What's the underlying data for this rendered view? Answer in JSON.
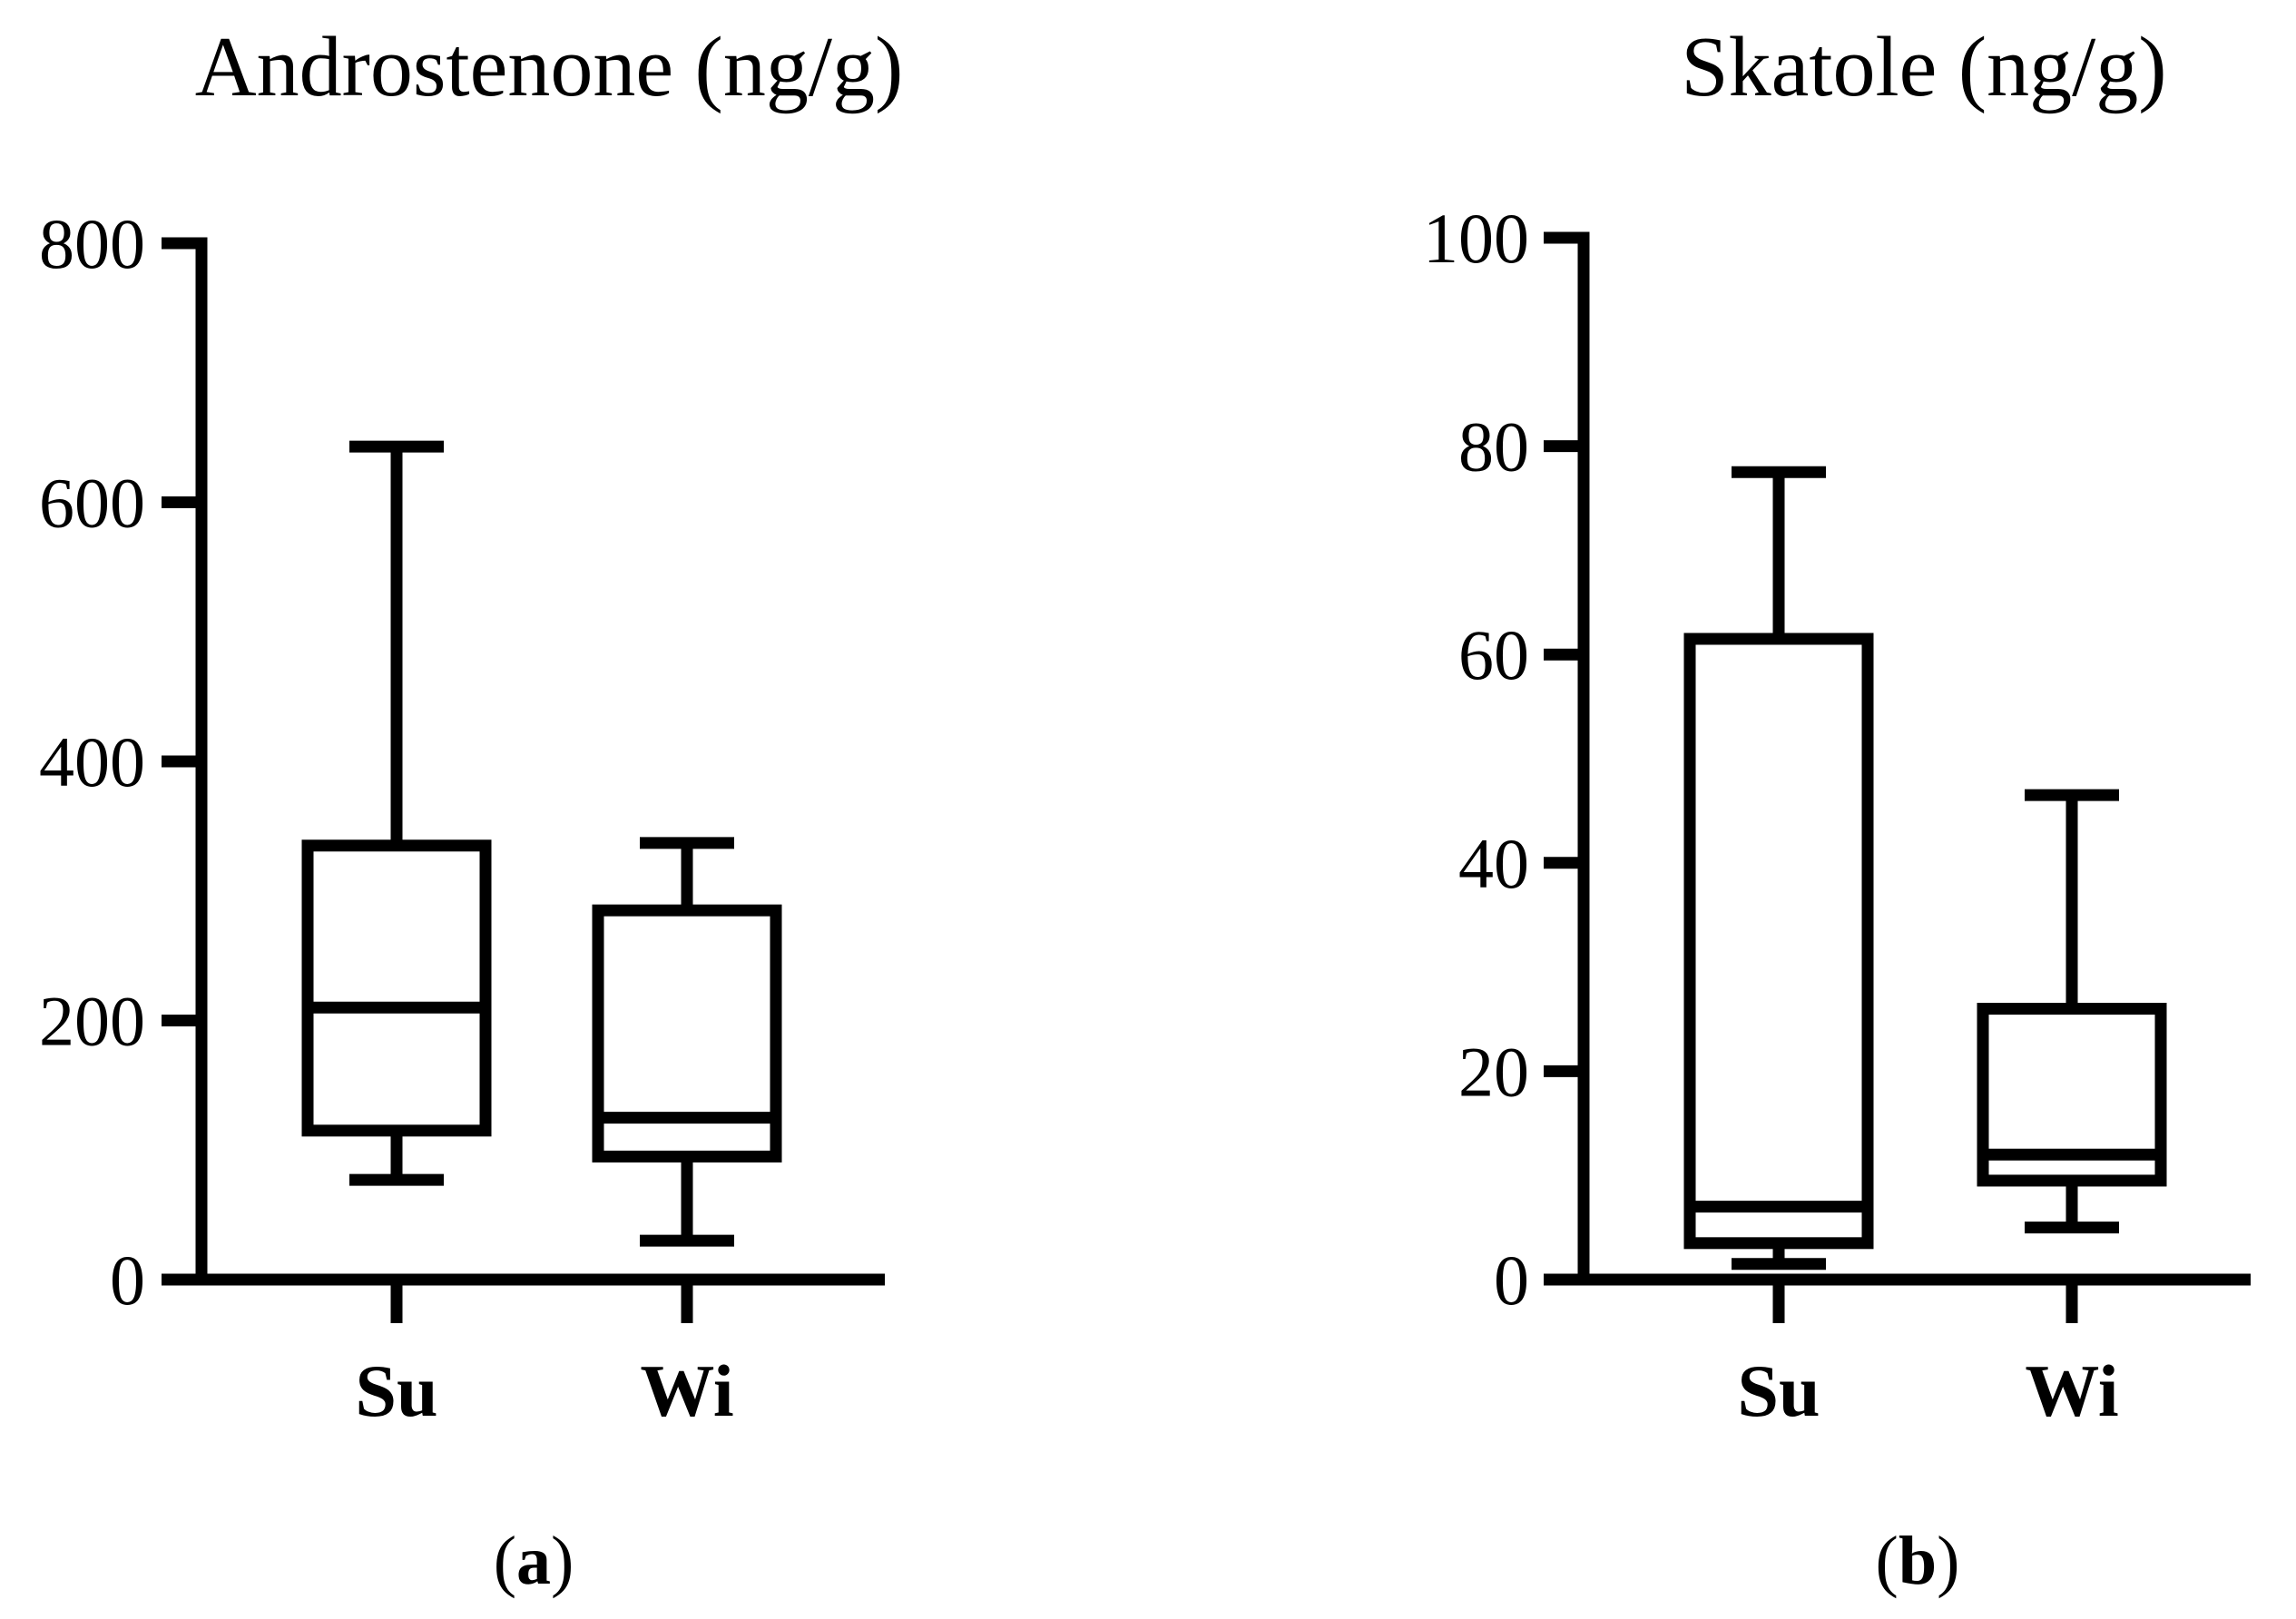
{
  "chart_data": [
    {
      "type": "box",
      "panel_label": "a",
      "title": "Androstenone (ng/g)",
      "xlabel": "",
      "ylabel": "",
      "ylim": [
        0,
        800
      ],
      "yticks": [
        0,
        200,
        400,
        600,
        800
      ],
      "categories": [
        "Su",
        "Wi"
      ],
      "boxes": [
        {
          "name": "Su",
          "whisker_low": 77,
          "q1": 115,
          "median": 210,
          "q3": 335,
          "whisker_high": 643
        },
        {
          "name": "Wi",
          "whisker_low": 30,
          "q1": 95,
          "median": 125,
          "q3": 285,
          "whisker_high": 337
        }
      ],
      "grid": false,
      "line_color": "#000000"
    },
    {
      "type": "box",
      "panel_label": "b",
      "title": "Skatole (ng/g)",
      "xlabel": "",
      "ylabel": "",
      "ylim": [
        0,
        100
      ],
      "yticks": [
        0,
        20,
        40,
        60,
        80,
        100
      ],
      "categories": [
        "Su",
        "Wi"
      ],
      "boxes": [
        {
          "name": "Su",
          "whisker_low": 1.5,
          "q1": 3.5,
          "median": 7,
          "q3": 61.5,
          "whisker_high": 77.5
        },
        {
          "name": "Wi",
          "whisker_low": 5,
          "q1": 9.5,
          "median": 12,
          "q3": 26,
          "whisker_high": 46.5
        }
      ],
      "grid": false,
      "line_color": "#000000"
    }
  ]
}
